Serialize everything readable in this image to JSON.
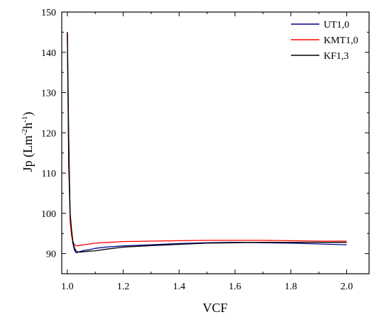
{
  "chart_data": {
    "type": "line",
    "title": "",
    "xlabel": "VCF",
    "ylabel": "Jp (Lm-2h-1)",
    "ylabel_parts": {
      "base": "Jp (Lm",
      "sup1": "-2",
      "mid": "h",
      "sup2": "-1",
      "end": ")"
    },
    "xlim": [
      0.98,
      2.08
    ],
    "ylim": [
      85,
      150
    ],
    "xticks": [
      1.0,
      1.2,
      1.4,
      1.6,
      1.8,
      2.0
    ],
    "xtick_labels": [
      "1.0",
      "1.2",
      "1.4",
      "1.6",
      "1.8",
      "2.0"
    ],
    "yticks": [
      90,
      100,
      110,
      120,
      130,
      140,
      150
    ],
    "ytick_labels": [
      "90",
      "100",
      "110",
      "120",
      "130",
      "140",
      "150"
    ],
    "grid": false,
    "legend_position": "top-right",
    "series": [
      {
        "name": "UT1,0",
        "color": "#00008b",
        "x": [
          1.0,
          1.005,
          1.01,
          1.015,
          1.02,
          1.025,
          1.03,
          1.035,
          1.04,
          1.05,
          1.06,
          1.08,
          1.1,
          1.15,
          1.2,
          1.3,
          1.4,
          1.5,
          1.6,
          1.7,
          1.8,
          1.9,
          2.0
        ],
        "y": [
          145,
          120,
          100,
          95,
          92.5,
          91,
          90.3,
          90.2,
          90.4,
          90.6,
          90.8,
          91,
          91.3,
          91.7,
          91.9,
          92.2,
          92.5,
          92.7,
          92.8,
          92.7,
          92.6,
          92.4,
          92.2
        ]
      },
      {
        "name": "KMT1,0",
        "color": "#ff0000",
        "x": [
          1.0,
          1.005,
          1.01,
          1.015,
          1.02,
          1.025,
          1.03,
          1.035,
          1.04,
          1.05,
          1.06,
          1.08,
          1.1,
          1.15,
          1.2,
          1.3,
          1.4,
          1.5,
          1.6,
          1.7,
          1.8,
          1.9,
          2.0
        ],
        "y": [
          145,
          115,
          98,
          94.5,
          93,
          92.3,
          92,
          91.9,
          92,
          92.1,
          92.2,
          92.4,
          92.6,
          92.8,
          93,
          93.1,
          93.2,
          93.3,
          93.3,
          93.3,
          93.2,
          93.1,
          93.1
        ]
      },
      {
        "name": "KF1,3",
        "color": "#000000",
        "x": [
          1.0,
          1.005,
          1.01,
          1.015,
          1.02,
          1.025,
          1.03,
          1.035,
          1.04,
          1.05,
          1.06,
          1.08,
          1.1,
          1.15,
          1.2,
          1.3,
          1.4,
          1.5,
          1.6,
          1.7,
          1.8,
          1.9,
          2.0
        ],
        "y": [
          145,
          112,
          100,
          96,
          93,
          91.5,
          90.8,
          90.5,
          90.4,
          90.4,
          90.5,
          90.6,
          90.7,
          91.2,
          91.6,
          92,
          92.3,
          92.6,
          92.7,
          92.8,
          92.8,
          92.8,
          92.8
        ]
      }
    ]
  }
}
